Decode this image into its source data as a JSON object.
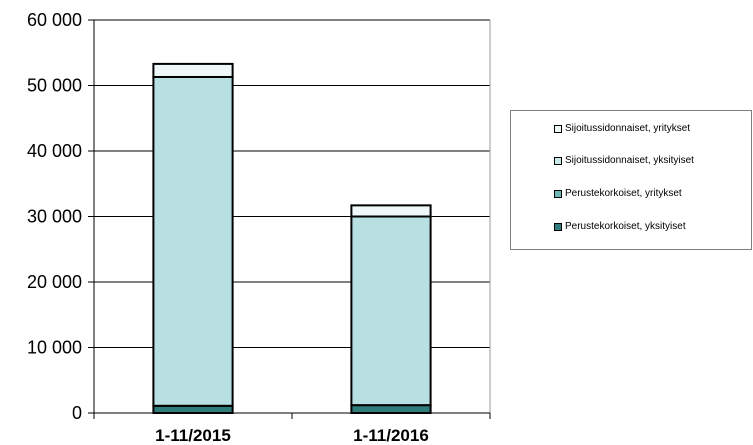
{
  "chart_data": {
    "type": "bar",
    "stacked": true,
    "categories": [
      "1-11/2015",
      "1-11/2016"
    ],
    "series": [
      {
        "name": "Perustekorkoiset, yksityiset",
        "values": [
          1100,
          1200
        ],
        "color": "#2e7d7a"
      },
      {
        "name": "Perustekorkoiset, yritykset",
        "values": [
          50200,
          28800
        ],
        "color": "#b8e0e3"
      },
      {
        "name": "Sijoitussidonnaiset, yksityiset",
        "values": [
          0,
          0
        ],
        "color": "#c8eaea"
      },
      {
        "name": "Sijoitussidonnaiset, yritykset",
        "values": [
          2000,
          1700
        ],
        "color": "#eef8f8"
      }
    ],
    "ylim": [
      0,
      60000
    ],
    "yticks": [
      "0",
      "10 000",
      "20 000",
      "30 000",
      "40 000",
      "50 000",
      "60 000"
    ],
    "grid": true,
    "legend_position": "right",
    "legend_entries": [
      "Sijoitussidonnaiset, yritykset",
      "Sijoitussidonnaiset, yksityiset",
      "Perustekorkoiset, yritykset",
      "Perustekorkoiset, yksityiset"
    ]
  }
}
